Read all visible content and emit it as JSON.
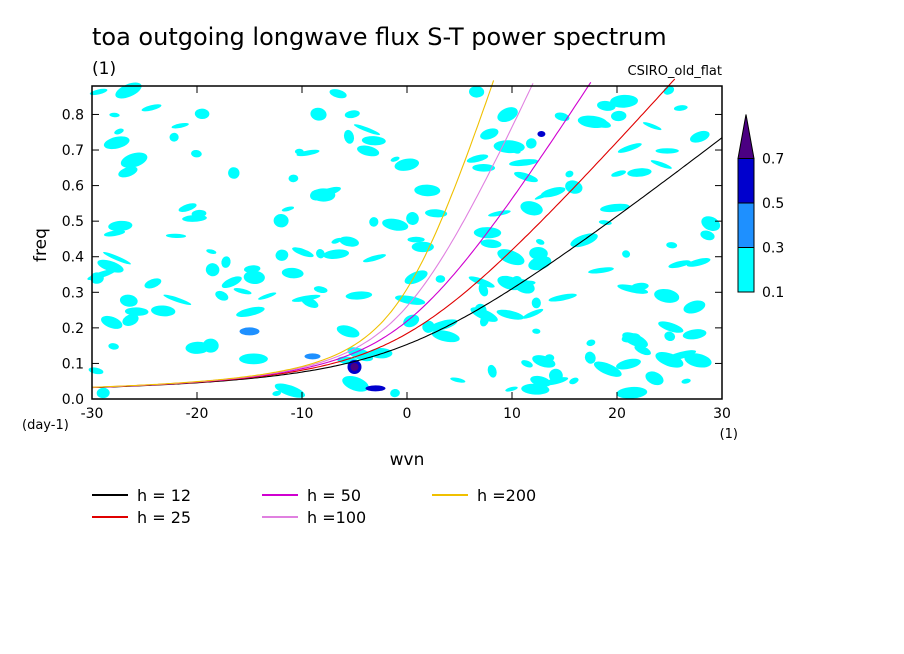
{
  "chart_data": {
    "type": "contour",
    "title": "toa outgoing longwave flux S-T power spectrum",
    "subtitle": "(1)",
    "model_label": "CSIRO_old_flat",
    "xlabel": "wvn",
    "ylabel": "freq",
    "x_units": "(1)",
    "y_units": "(day-1)",
    "xlim": [
      -30,
      30
    ],
    "ylim": [
      0.0,
      0.88
    ],
    "xticks": [
      "-30",
      "-20",
      "-10",
      "0",
      "10",
      "20",
      "30"
    ],
    "yticks": [
      "0.0",
      "0.1",
      "0.2",
      "0.3",
      "0.4",
      "0.5",
      "0.6",
      "0.7",
      "0.8"
    ],
    "colorbar": {
      "levels": [
        "0.1",
        "0.3",
        "0.5",
        "0.7"
      ],
      "colors": [
        "#00ffff",
        "#1e90ff",
        "#0000cd",
        "#4b0082"
      ]
    },
    "dispersion_curves": [
      {
        "name": "h = 12",
        "h": 12,
        "color": "#000000"
      },
      {
        "name": "h = 25",
        "h": 25,
        "color": "#e00000"
      },
      {
        "name": "h = 50",
        "h": 50,
        "color": "#d000d0"
      },
      {
        "name": "h =100",
        "h": 100,
        "color": "#e080e0"
      },
      {
        "name": "h =200",
        "h": 200,
        "color": "#f0c000"
      }
    ]
  }
}
